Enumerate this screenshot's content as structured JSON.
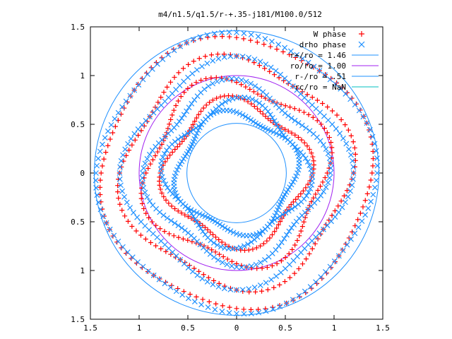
{
  "chart_data": {
    "type": "scatter",
    "title": "m4/n1.5/q1.5/r-+.35-j181/M100.0/512",
    "xlim": [
      -1.5,
      1.5
    ],
    "ylim": [
      -1.5,
      1.5
    ],
    "x_ticks": [
      -1.5,
      -1,
      -0.5,
      0,
      0.5,
      1,
      1.5
    ],
    "y_ticks": [
      -1.5,
      -1,
      -0.5,
      0,
      0.5,
      1,
      1.5
    ],
    "x_tick_labels": [
      "1.5",
      "1",
      "0.5",
      "0",
      "0.5",
      "1",
      "1.5"
    ],
    "y_tick_labels": [
      "1.5",
      "1",
      "0.5",
      "0",
      "0.5",
      "1",
      "1.5"
    ],
    "grid": false,
    "legend_position": "top-right",
    "series": [
      {
        "name": "W phase",
        "marker": "plus",
        "color": "#ff0000"
      },
      {
        "name": "drho phase",
        "marker": "cross",
        "color": "#1e90ff"
      }
    ],
    "circles": [
      {
        "name": "r+/ro = 1.46",
        "radius": 1.46,
        "color": "#1e90ff"
      },
      {
        "name": "ro/ro = 1.00",
        "radius": 1.0,
        "color": "#a020f0"
      },
      {
        "name": "r-/ro = .51",
        "radius": 0.51,
        "color": "#1e90ff"
      },
      {
        "name": "rc/ro = NaN",
        "radius": null,
        "color": "#00c0c0"
      }
    ],
    "rings": [
      {
        "radius": 1.38,
        "amp": 0.05,
        "arms": 4,
        "phase": 0.2,
        "series": "W phase"
      },
      {
        "radius": 1.4,
        "amp": 0.05,
        "arms": 4,
        "phase": 1.0,
        "series": "drho phase"
      },
      {
        "radius": 1.15,
        "amp": 0.09,
        "arms": 4,
        "phase": 0.6,
        "series": "W phase"
      },
      {
        "radius": 1.12,
        "amp": 0.08,
        "arms": 4,
        "phase": 1.5,
        "series": "drho phase"
      },
      {
        "radius": 0.92,
        "amp": 0.1,
        "arms": 4,
        "phase": 0.1,
        "series": "W phase"
      },
      {
        "radius": 0.88,
        "amp": 0.09,
        "arms": 4,
        "phase": 1.2,
        "series": "drho phase"
      },
      {
        "radius": 0.72,
        "amp": 0.08,
        "arms": 4,
        "phase": 0.9,
        "series": "W phase"
      },
      {
        "radius": 0.7,
        "amp": 0.08,
        "arms": 4,
        "phase": 2.0,
        "series": "drho phase"
      },
      {
        "radius": 0.6,
        "amp": 0.06,
        "arms": 4,
        "phase": 0.4,
        "series": "drho phase"
      }
    ]
  }
}
